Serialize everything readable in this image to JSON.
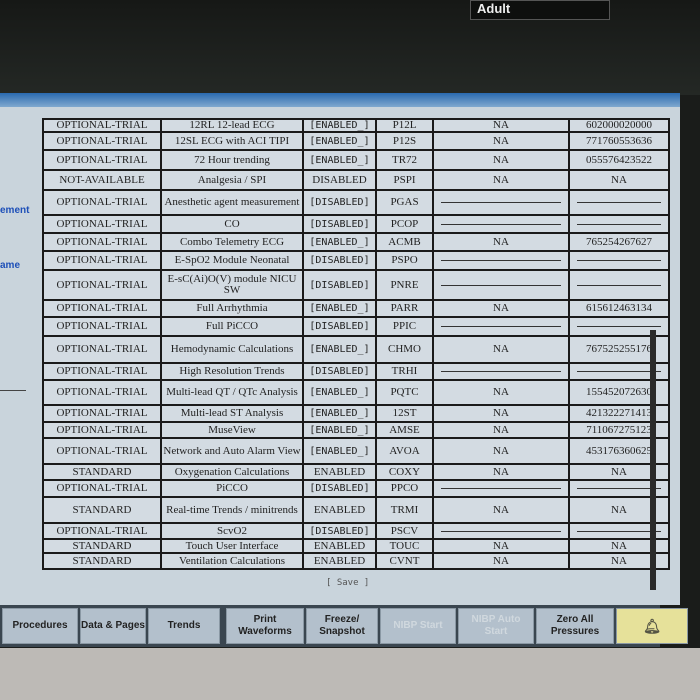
{
  "header": {
    "patient_category": "Adult"
  },
  "side_labels": [
    "ement",
    "ame"
  ],
  "table": {
    "rows": [
      [
        "OPTIONAL-TRIAL",
        "12RL 12-lead ECG",
        "[ENABLED_]",
        "P12L",
        "NA",
        "602000020000"
      ],
      [
        "OPTIONAL-TRIAL",
        "12SL ECG with ACI TIPI",
        "[ENABLED_]",
        "P12S",
        "NA",
        "771760553636"
      ],
      [
        "OPTIONAL-TRIAL",
        "72 Hour trending",
        "[ENABLED_]",
        "TR72",
        "NA",
        "055576423522"
      ],
      [
        "NOT-AVAILABLE",
        "Analgesia / SPI",
        "DISABLED",
        "PSPI",
        "NA",
        "NA"
      ],
      [
        "OPTIONAL-TRIAL",
        "Anesthetic agent measurement",
        "[DISABLED]",
        "PGAS",
        "",
        ""
      ],
      [
        "OPTIONAL-TRIAL",
        "CO",
        "[DISABLED]",
        "PCOP",
        "",
        ""
      ],
      [
        "OPTIONAL-TRIAL",
        "Combo Telemetry ECG",
        "[ENABLED_]",
        "ACMB",
        "NA",
        "765254267627"
      ],
      [
        "OPTIONAL-TRIAL",
        "E-SpO2 Module Neonatal",
        "[DISABLED]",
        "PSPO",
        "",
        ""
      ],
      [
        "OPTIONAL-TRIAL",
        "E-sC(Ai)O(V) module NICU SW",
        "[DISABLED]",
        "PNRE",
        "",
        ""
      ],
      [
        "OPTIONAL-TRIAL",
        "Full Arrhythmia",
        "[ENABLED_]",
        "PARR",
        "NA",
        "615612463134"
      ],
      [
        "OPTIONAL-TRIAL",
        "Full PiCCO",
        "[DISABLED]",
        "PPIC",
        "",
        ""
      ],
      [
        "OPTIONAL-TRIAL",
        "Hemodynamic Calculations",
        "[ENABLED_]",
        "CHMO",
        "NA",
        "767525255176"
      ],
      [
        "OPTIONAL-TRIAL",
        "High Resolution Trends",
        "[DISABLED]",
        "TRHI",
        "",
        ""
      ],
      [
        "OPTIONAL-TRIAL",
        "Multi-lead QT / QTc Analysis",
        "[ENABLED_]",
        "PQTC",
        "NA",
        "155452072630"
      ],
      [
        "OPTIONAL-TRIAL",
        "Multi-lead ST Analysis",
        "[ENABLED_]",
        "12ST",
        "NA",
        "421322271413"
      ],
      [
        "OPTIONAL-TRIAL",
        "MuseView",
        "[ENABLED_]",
        "AMSE",
        "NA",
        "711067275123"
      ],
      [
        "OPTIONAL-TRIAL",
        "Network and Auto Alarm View",
        "[ENABLED_]",
        "AVOA",
        "NA",
        "453176360625"
      ],
      [
        "STANDARD",
        "Oxygenation Calculations",
        "ENABLED",
        "COXY",
        "NA",
        "NA"
      ],
      [
        "OPTIONAL-TRIAL",
        "PiCCO",
        "[DISABLED]",
        "PPCO",
        "",
        ""
      ],
      [
        "STANDARD",
        "Real-time Trends / minitrends",
        "ENABLED",
        "TRMI",
        "NA",
        "NA"
      ],
      [
        "OPTIONAL-TRIAL",
        "ScvO2",
        "[DISABLED]",
        "PSCV",
        "",
        ""
      ],
      [
        "STANDARD",
        "Touch User Interface",
        "ENABLED",
        "TOUC",
        "NA",
        "NA"
      ],
      [
        "STANDARD",
        "Ventilation Calculations",
        "ENABLED",
        "CVNT",
        "NA",
        "NA"
      ]
    ]
  },
  "save_label": "[ Save ]",
  "buttons": [
    {
      "label": "Procedures",
      "enabled": true
    },
    {
      "label": "Data & Pages",
      "enabled": true
    },
    {
      "label": "Trends",
      "enabled": true
    },
    {
      "label": "Print Waveforms",
      "enabled": true
    },
    {
      "label": "Freeze/ Snapshot",
      "enabled": true
    },
    {
      "label": "NIBP Start",
      "enabled": false
    },
    {
      "label": "NIBP Auto Start",
      "enabled": false
    },
    {
      "label": "Zero All Pressures",
      "enabled": true
    }
  ],
  "alarm_icon": "bell-alarm-icon"
}
